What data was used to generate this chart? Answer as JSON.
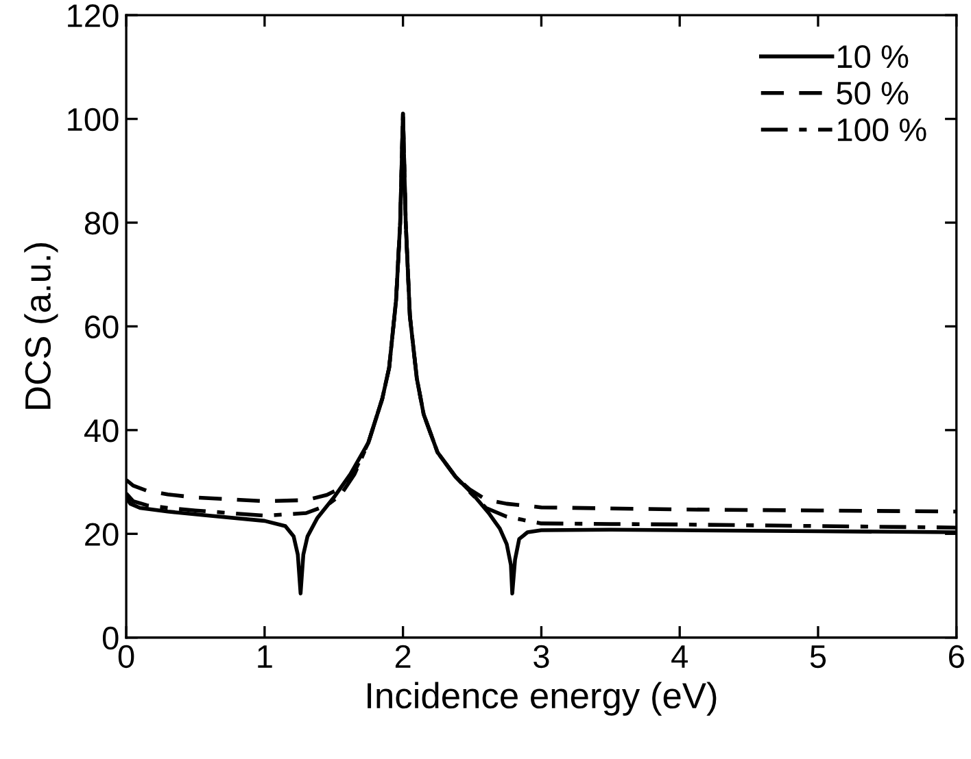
{
  "chart_data": {
    "type": "line",
    "xlabel": "Incidence energy (eV)",
    "ylabel": "DCS (a.u.)",
    "xlim": [
      0,
      6
    ],
    "ylim": [
      0,
      120
    ],
    "xticks": [
      0,
      1,
      2,
      3,
      4,
      5,
      6
    ],
    "yticks": [
      0,
      20,
      40,
      60,
      80,
      100,
      120
    ],
    "grid": false,
    "legend": "top right",
    "marker": "none",
    "series": [
      {
        "name": "10 %",
        "color": "#000000",
        "line_style": "solid",
        "x": [
          0,
          0.03,
          0.1,
          0.3,
          0.6,
          1.0,
          1.15,
          1.21,
          1.24,
          1.26,
          1.28,
          1.31,
          1.38,
          1.5,
          1.62,
          1.75,
          1.85,
          1.9,
          1.95,
          1.98,
          2.0,
          2.02,
          2.05,
          2.1,
          2.15,
          2.25,
          2.38,
          2.5,
          2.62,
          2.7,
          2.75,
          2.78,
          2.79,
          2.81,
          2.84,
          2.9,
          3.0,
          3.5,
          4.0,
          5.0,
          6.0
        ],
        "values": [
          27,
          25.8,
          25,
          24.3,
          23.5,
          22.5,
          21.5,
          19.5,
          16,
          8.5,
          16,
          19.5,
          23,
          27,
          31.5,
          37.6,
          46,
          52,
          65,
          80,
          101,
          80,
          62,
          50,
          43,
          35.7,
          31,
          27.8,
          24,
          21,
          18,
          14,
          8.5,
          15,
          19,
          20.3,
          20.7,
          20.8,
          20.7,
          20.5,
          20.3
        ]
      },
      {
        "name": "50 %",
        "color": "#000000",
        "line_style": "dashed",
        "x": [
          0,
          0.05,
          0.15,
          0.3,
          0.5,
          1.0,
          1.3,
          1.45,
          1.55,
          1.65,
          1.75,
          1.85,
          1.9,
          1.95,
          1.98,
          2.0,
          2.02,
          2.05,
          2.1,
          2.15,
          2.25,
          2.38,
          2.48,
          2.6,
          2.75,
          3.0,
          3.5,
          4.0,
          5.0,
          6.0
        ],
        "values": [
          30.4,
          29.3,
          28.3,
          27.6,
          27,
          26.3,
          26.5,
          27.5,
          28.8,
          32,
          37.6,
          46,
          52,
          65,
          80,
          101,
          80,
          62,
          50,
          43,
          35.7,
          31,
          28.6,
          26.6,
          25.8,
          25.1,
          24.9,
          24.7,
          24.5,
          24.3
        ]
      },
      {
        "name": "100 %",
        "color": "#000000",
        "line_style": "dashdot",
        "x": [
          0,
          0.05,
          0.15,
          0.3,
          0.5,
          1.0,
          1.3,
          1.45,
          1.55,
          1.65,
          1.75,
          1.85,
          1.9,
          1.95,
          1.98,
          2.0,
          2.02,
          2.05,
          2.1,
          2.15,
          2.25,
          2.38,
          2.5,
          2.6,
          2.75,
          3.0,
          3.5,
          4.0,
          5.0,
          6.0
        ],
        "values": [
          27.8,
          26.3,
          25.5,
          25,
          24.5,
          23.5,
          24,
          25.5,
          27.5,
          31.5,
          37.6,
          46,
          52,
          65,
          80,
          101,
          80,
          62,
          50,
          43,
          35.7,
          31,
          27.6,
          25,
          23.3,
          22,
          21.9,
          21.8,
          21.5,
          21.2
        ]
      }
    ]
  }
}
